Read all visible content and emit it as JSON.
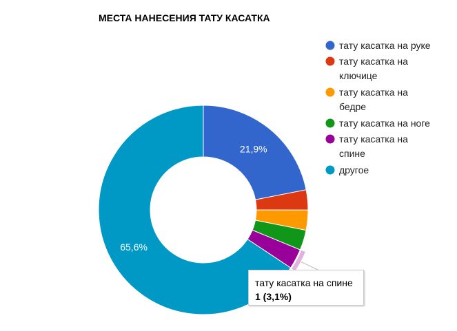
{
  "chart_data": {
    "type": "pie",
    "title": "МЕСТА НАНЕСЕНИЯ ТАТУ КАСАТКА",
    "donut": true,
    "legend_position": "right",
    "slices": [
      {
        "name": "тату касатка на руке",
        "legend_lines": [
          "тату касатка на руке"
        ],
        "value": 21.9,
        "color": "#3366cc",
        "label": "21,9%"
      },
      {
        "name": "тату касатка на ключице",
        "legend_lines": [
          "тату касатка на",
          "ключице"
        ],
        "value": 3.1,
        "color": "#dc3912",
        "label": ""
      },
      {
        "name": "тату касатка на бедре",
        "legend_lines": [
          "тату касатка на",
          "бедре"
        ],
        "value": 3.1,
        "color": "#ff9900",
        "label": ""
      },
      {
        "name": "тату касатка на ноге",
        "legend_lines": [
          "тату касатка на ноге"
        ],
        "value": 3.1,
        "color": "#109618",
        "label": ""
      },
      {
        "name": "тату касатка на спине",
        "legend_lines": [
          "тату касатка на",
          "спине"
        ],
        "value": 3.1,
        "color": "#990099",
        "label": ""
      },
      {
        "name": "другое",
        "legend_lines": [
          "другое"
        ],
        "value": 65.6,
        "color": "#0099c6",
        "label": "65,6%"
      }
    ],
    "highlighted_slice": 4,
    "tooltip": {
      "title": "тату касатка на спине",
      "value": "1 (3,1%)"
    }
  }
}
